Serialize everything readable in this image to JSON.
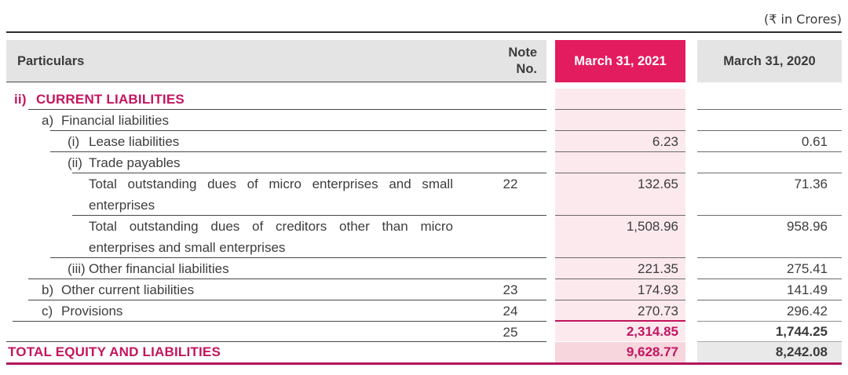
{
  "meta": {
    "currency_note": "(₹ in Crores)"
  },
  "table": {
    "header": {
      "particulars": "Particulars",
      "note_line1": "Note",
      "note_line2": "No.",
      "col_2021": "March 31, 2021",
      "col_2020": "March 31, 2020"
    },
    "rows": [
      {
        "marker": "ii)",
        "label": "CURRENT LIABILITIES",
        "level": 0,
        "section": true
      },
      {
        "marker": "a)",
        "label": "Financial liabilities",
        "level": 1
      },
      {
        "marker": "(i)",
        "label": "Lease liabilities",
        "level": 2,
        "v2021": "6.23",
        "v2020": "0.61"
      },
      {
        "marker": "(ii)",
        "label": "Trade payables",
        "level": 2,
        "note": "22"
      },
      {
        "label": "Total outstanding dues of micro enterprises and small enterprises",
        "level": 3,
        "justify": true,
        "v2021": "132.65",
        "v2020": "71.36"
      },
      {
        "label": "Total outstanding dues of creditors other than micro enterprises and small enterprises",
        "level": 3,
        "justify": true,
        "v2021": "1,508.96",
        "v2020": "958.96"
      },
      {
        "marker": "(iii)",
        "label": "Other financial liabilities",
        "level": 2,
        "note": "23",
        "v2021": "221.35",
        "v2020": "275.41"
      },
      {
        "marker": "b)",
        "label": "Other current liabilities",
        "level": 1,
        "note": "24",
        "v2021": "174.93",
        "v2020": "141.49"
      },
      {
        "marker": "c)",
        "label": "Provisions",
        "level": 1,
        "note": "25",
        "v2021": "270.73",
        "v2020": "296.42"
      },
      {
        "label": "",
        "subtotal": true,
        "v2021": "2,314.85",
        "v2020": "1,744.25"
      },
      {
        "label": "TOTAL EQUITY AND LIABILITIES",
        "total": true,
        "v2021": "9,628.77",
        "v2020": "8,242.08"
      }
    ]
  },
  "colors": {
    "accent_pink": "#e31c5f",
    "light_pink_band": "#fbe9ee",
    "total_row_pink": "#f7d6de",
    "header_gray": "#e4e4e5",
    "total_row_gray": "#e9e9ea",
    "magenta_text": "#c4155f",
    "body_text": "#3d3d3d",
    "bottom_rule": "#b4155b"
  }
}
